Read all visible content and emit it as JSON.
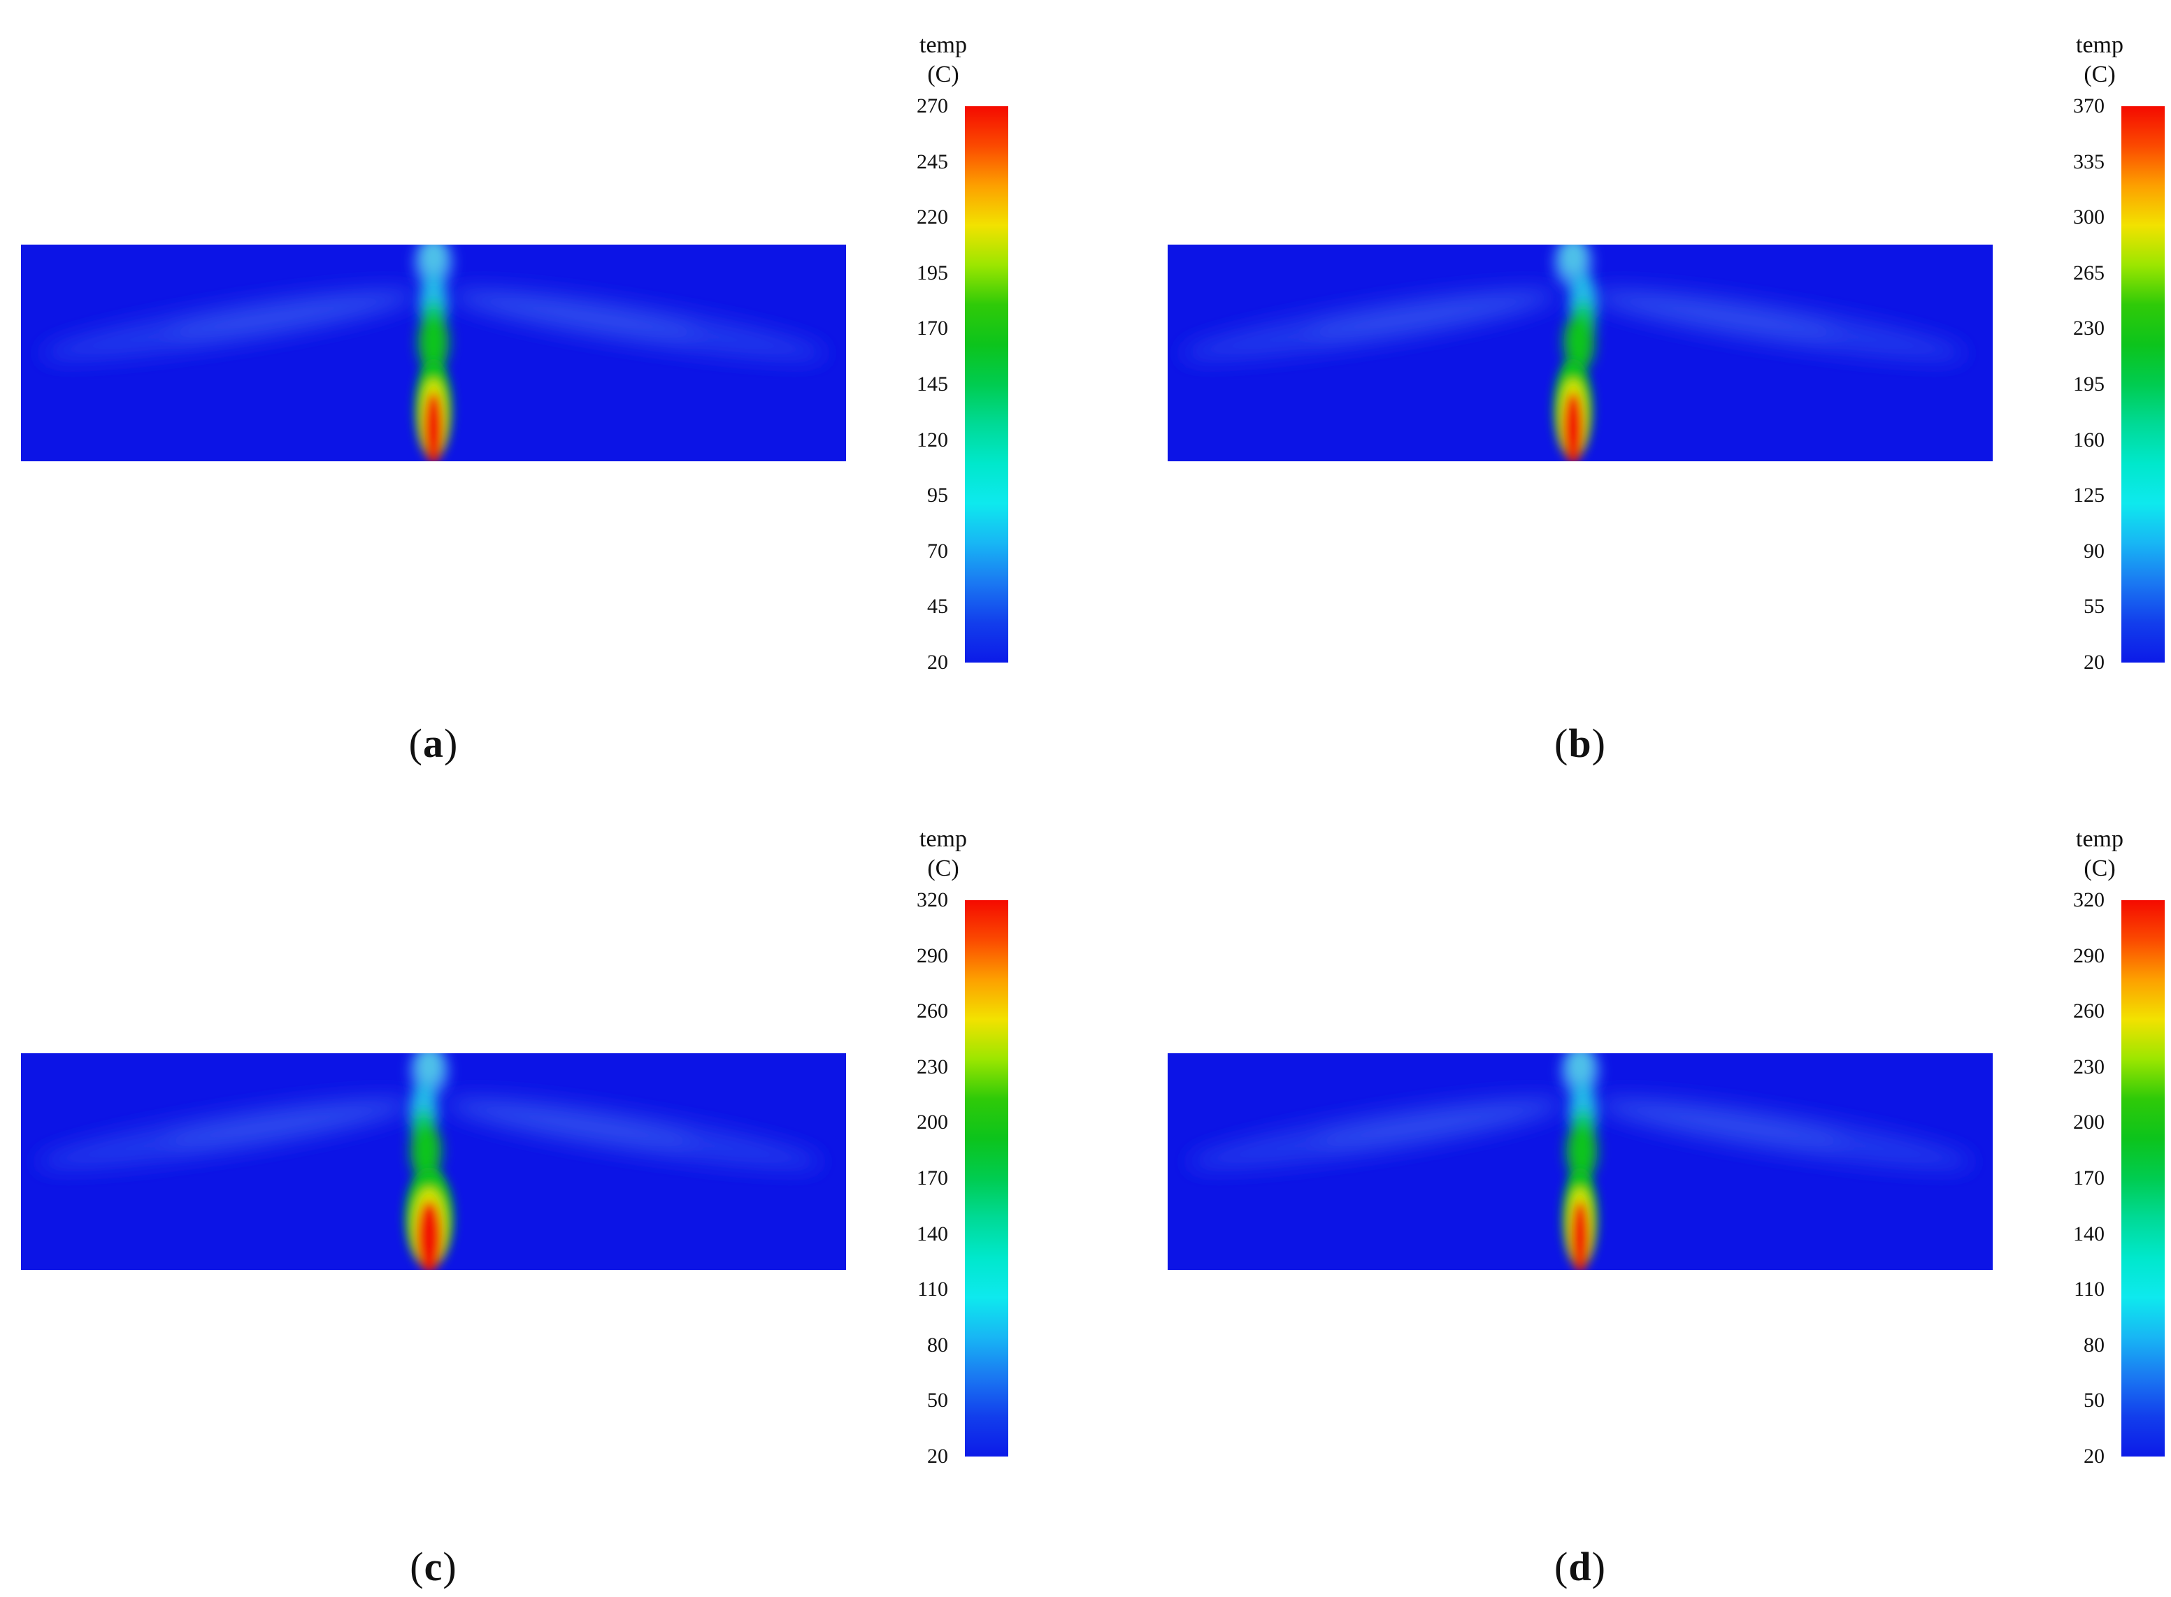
{
  "figure": {
    "type": "temperature-contour-figure",
    "panels": [
      {
        "id": "a",
        "label": "a",
        "colorbar": {
          "title": "temp",
          "units": "(C)",
          "min": 20,
          "max": 270,
          "ticks": [
            270,
            245,
            220,
            195,
            170,
            145,
            120,
            95,
            70,
            45,
            20
          ]
        }
      },
      {
        "id": "b",
        "label": "b",
        "colorbar": {
          "title": "temp",
          "units": "(C)",
          "min": 20,
          "max": 370,
          "ticks": [
            370,
            335,
            300,
            265,
            230,
            195,
            160,
            125,
            90,
            55,
            20
          ]
        }
      },
      {
        "id": "c",
        "label": "c",
        "colorbar": {
          "title": "temp",
          "units": "(C)",
          "min": 20,
          "max": 320,
          "ticks": [
            320,
            290,
            260,
            230,
            200,
            170,
            140,
            110,
            80,
            50,
            20
          ]
        }
      },
      {
        "id": "d",
        "label": "d",
        "colorbar": {
          "title": "temp",
          "units": "(C)",
          "min": 20,
          "max": 320,
          "ticks": [
            320,
            290,
            260,
            230,
            200,
            170,
            140,
            110,
            80,
            50,
            20
          ]
        }
      }
    ]
  },
  "punctuation": {
    "open": "(",
    "close": ")"
  },
  "colors": {
    "background": "#ffffff",
    "field_base": "#0c14e6",
    "colormap_top_to_bottom": [
      "#f50a00",
      "#fb4a00",
      "#fda000",
      "#f2e200",
      "#9ce600",
      "#2fca08",
      "#0cc41c",
      "#00cc50",
      "#00da96",
      "#00e8cc",
      "#0ee9ee",
      "#18b6f4",
      "#1a78f2",
      "#123eec",
      "#0c1ae8"
    ],
    "plume": {
      "wing": "#2038ec",
      "wing_inner": "#2e4cee",
      "column_top": "#3a86f2",
      "column_top_core": "#4fc3e8",
      "column_cyan": "#20b8e8",
      "column_teal": "#10c87a",
      "green": "#0cc41c",
      "yellow": "#cfe400",
      "red": "#f21600"
    }
  },
  "chart_data": [
    {
      "type": "heatmap",
      "panel": "a",
      "colorbar_label": "temp (C)",
      "value_range": [
        20,
        270
      ],
      "colorbar_ticks": [
        270,
        245,
        220,
        195,
        170,
        145,
        120,
        95,
        70,
        45,
        20
      ],
      "ambient_value": 20,
      "hotspot": {
        "x_fraction": 0.5,
        "y_fraction": 0.92,
        "peak_value": 270
      },
      "pattern": "blue ambient field (~20 C) with central vertical fire plume: red core (~270 C) at bottom center wrapped by yellow and green contours, cyan/light-blue column rising to top edge, and faint warmer wing-shaped layers spreading horizontally near the top and drooping toward the side edges"
    },
    {
      "type": "heatmap",
      "panel": "b",
      "colorbar_label": "temp (C)",
      "value_range": [
        20,
        370
      ],
      "colorbar_ticks": [
        370,
        335,
        300,
        265,
        230,
        195,
        160,
        125,
        90,
        55,
        20
      ],
      "ambient_value": 20,
      "hotspot": {
        "x_fraction": 0.48,
        "y_fraction": 0.92,
        "peak_value": 370
      },
      "pattern": "blue ambient field with slightly kinked central plume: red core (~370 C) at bottom center, green envelope extending higher than panel (a), cyan column to top edge, faint drooping warm wings near the top"
    },
    {
      "type": "heatmap",
      "panel": "c",
      "colorbar_label": "temp (C)",
      "value_range": [
        20,
        320
      ],
      "colorbar_ticks": [
        320,
        290,
        260,
        230,
        200,
        170,
        140,
        110,
        80,
        50,
        20
      ],
      "ambient_value": 20,
      "hotspot": {
        "x_fraction": 0.49,
        "y_fraction": 0.9,
        "peak_value": 320
      },
      "pattern": "blue ambient field with central plume having an enlarged red core (~320 C) at bottom center, detached green blob above it, cyan column to top edge, faint drooping warm wings near the top"
    },
    {
      "type": "heatmap",
      "panel": "d",
      "colorbar_label": "temp (C)",
      "value_range": [
        20,
        320
      ],
      "colorbar_ticks": [
        320,
        290,
        260,
        230,
        200,
        170,
        140,
        110,
        80,
        50,
        20
      ],
      "ambient_value": 20,
      "hotspot": {
        "x_fraction": 0.5,
        "y_fraction": 0.92,
        "peak_value": 320
      },
      "pattern": "blue ambient field with slender central plume: red core (~320 C) at bottom center, continuous green/cyan column rising to top edge, faint drooping warm wings near the top"
    }
  ]
}
